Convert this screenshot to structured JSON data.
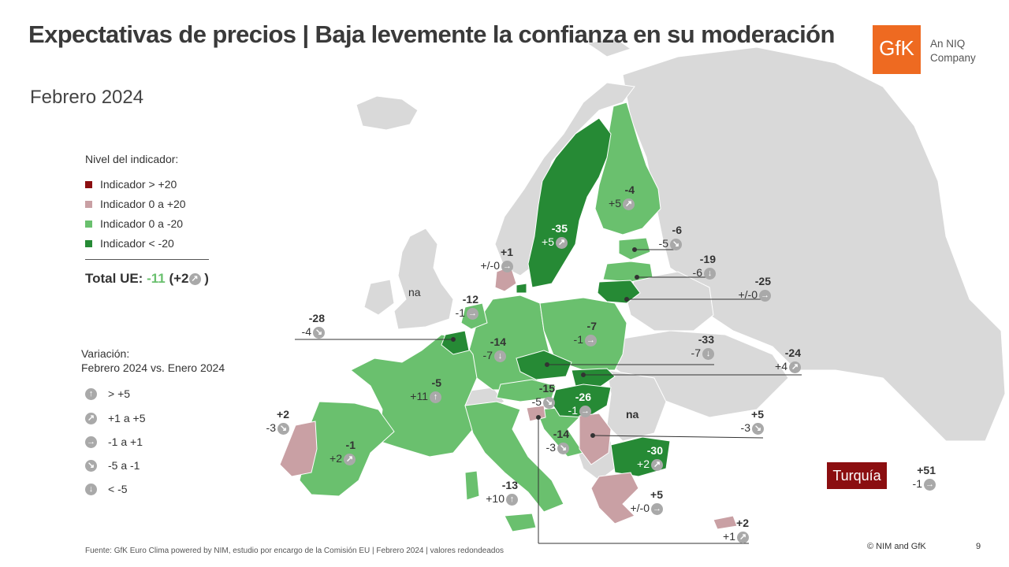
{
  "title": "Expectativas de precios | Baja levemente la confianza en su moderación",
  "subtitle": "Febrero 2024",
  "logo": {
    "mark": "GfK",
    "tagline_1": "An NIQ",
    "tagline_2": "Company"
  },
  "colors": {
    "above_20": "#8b0e10",
    "pos_0_20": "#c9a0a4",
    "neg_0_20": "#6ac06e",
    "below_20": "#268a35",
    "no_data": "#d9d9d9",
    "logo": "#ee6a21"
  },
  "legend": {
    "title": "Nivel del indicador:",
    "items": [
      {
        "label": "Indicador > +20",
        "color": "#8b0e10"
      },
      {
        "label": "Indicador 0 a +20",
        "color": "#c9a0a4"
      },
      {
        "label": "Indicador 0 a -20",
        "color": "#6ac06e"
      },
      {
        "label": "Indicador < -20",
        "color": "#268a35"
      }
    ]
  },
  "total": {
    "label": "Total UE:",
    "value": "-11",
    "change_open": "(+2",
    "change_close": ")",
    "icon": "arrow-up-right-icon"
  },
  "variation": {
    "title_1": "Variación:",
    "title_2": "Febrero 2024 vs. Enero 2024",
    "items": [
      {
        "icon": "arrow-up-icon",
        "label": "> +5"
      },
      {
        "icon": "arrow-up-right-icon",
        "label": "+1 a +5"
      },
      {
        "icon": "arrow-right-icon",
        "label": "-1 a +1"
      },
      {
        "icon": "arrow-down-right-icon",
        "label": "-5 a -1"
      },
      {
        "icon": "arrow-down-icon",
        "label": "< -5"
      }
    ]
  },
  "no_data": {
    "uk": "na",
    "ua": "na"
  },
  "countries": {
    "finland": {
      "value": "-4",
      "change": "+5",
      "icon": "arrow-up-right-icon"
    },
    "sweden": {
      "value": "-35",
      "change": "+5",
      "icon": "arrow-up-right-icon"
    },
    "estonia": {
      "value": "-6",
      "change": "-5",
      "icon": "arrow-down-right-icon"
    },
    "latvia": {
      "value": "-19",
      "change": "-6",
      "icon": "arrow-down-icon"
    },
    "lithuania": {
      "value": "-25",
      "change": "+/-0",
      "icon": "arrow-right-icon"
    },
    "denmark": {
      "value": "+1",
      "change": "+/-0",
      "icon": "arrow-right-icon"
    },
    "netherlands": {
      "value": "-12",
      "change": "-1",
      "icon": "arrow-right-icon"
    },
    "belgium": {
      "value": "-28",
      "change": "-4",
      "icon": "arrow-down-right-icon"
    },
    "germany": {
      "value": "-14",
      "change": "-7",
      "icon": "arrow-down-icon"
    },
    "poland": {
      "value": "-7",
      "change": "-1",
      "icon": "arrow-right-icon"
    },
    "czechia": {
      "value": "-33",
      "change": "-7",
      "icon": "arrow-down-icon"
    },
    "slovakia": {
      "value": "-24",
      "change": "+4",
      "icon": "arrow-up-right-icon"
    },
    "austria": {
      "value": "-15",
      "change": "-5",
      "icon": "arrow-down-right-icon"
    },
    "hungary": {
      "value": "-26",
      "change": "-1",
      "icon": "arrow-right-icon"
    },
    "france": {
      "value": "-5",
      "change": "+11",
      "icon": "arrow-up-icon"
    },
    "portugal": {
      "value": "+2",
      "change": "-3",
      "icon": "arrow-down-right-icon"
    },
    "spain": {
      "value": "-1",
      "change": "+2",
      "icon": "arrow-up-right-icon"
    },
    "slovenia": {
      "value": "+5",
      "change": "-3",
      "icon": "arrow-down-right-icon"
    },
    "croatia": {
      "value": "-14",
      "change": "-3",
      "icon": "arrow-down-right-icon"
    },
    "bulgaria": {
      "value": "-30",
      "change": "+2",
      "icon": "arrow-up-right-icon"
    },
    "italy": {
      "value": "-13",
      "change": "+10",
      "icon": "arrow-up-icon"
    },
    "greece": {
      "value": "+5",
      "change": "+/-0",
      "icon": "arrow-right-icon"
    },
    "cyprus": {
      "value": "+2",
      "change": "+1",
      "icon": "arrow-up-right-icon"
    },
    "turkey": {
      "name": "Turquía",
      "value": "+51",
      "change": "-1",
      "icon": "arrow-right-icon"
    }
  },
  "footer": "Fuente: GfK Euro Clima powered by NIM, estudio por encargo de la Comisión EU | Febrero 2024 | valores redondeados",
  "copyright": "© NIM and GfK",
  "page_number": "9"
}
